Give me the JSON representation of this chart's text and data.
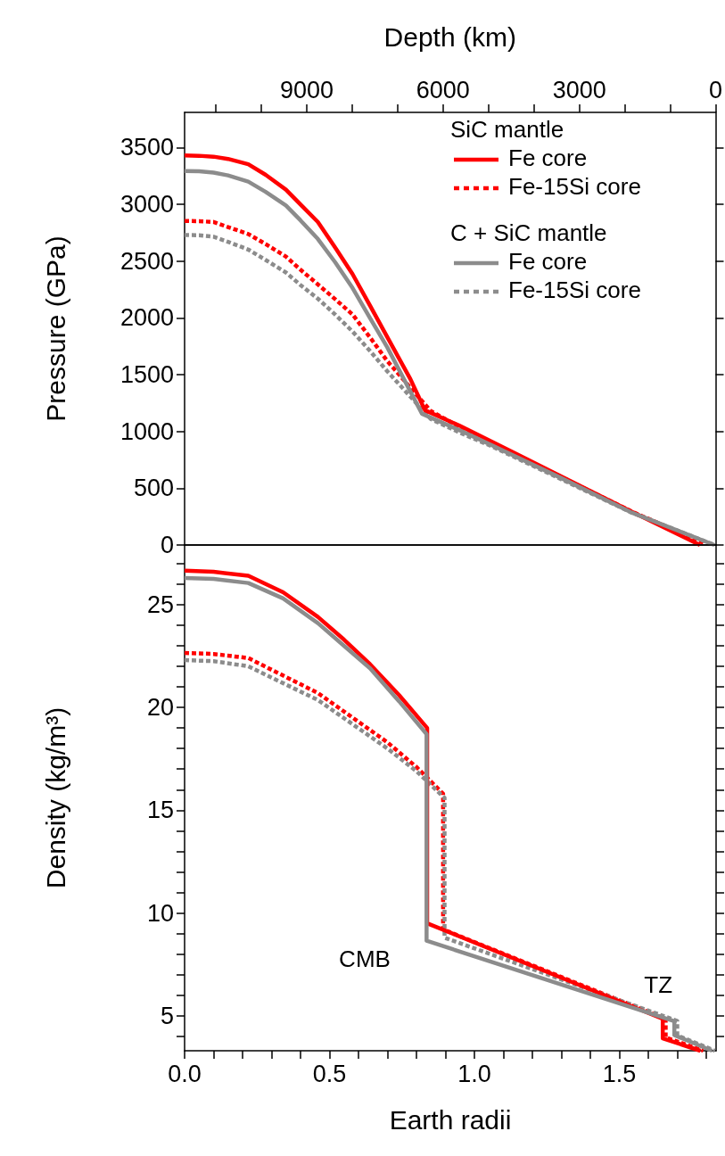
{
  "chart_data": [
    {
      "type": "line",
      "ylabel": "Pressure (GPa)",
      "x2label": "Depth (km)",
      "xlim": [
        0,
        1.834
      ],
      "x2lim": [
        11690,
        0
      ],
      "x2ticks": [
        {
          "value": 11000,
          "label": null
        },
        {
          "value": 10000,
          "label": null
        },
        9000,
        {
          "value": 8000,
          "label": null
        },
        {
          "value": 7000,
          "label": null
        },
        6000,
        {
          "value": 5000,
          "label": null
        },
        {
          "value": 4000,
          "label": null
        },
        3000,
        {
          "value": 2000,
          "label": null
        },
        {
          "value": 1000,
          "label": null
        },
        0
      ],
      "ylim": [
        0,
        3810
      ],
      "yticks": [
        0,
        500,
        1000,
        1500,
        2000,
        2500,
        3000,
        3500
      ],
      "tick_labels": "y",
      "grid": false,
      "legend": "top right",
      "legend_title": [
        "SiC mantle",
        "C + SiC mantle"
      ],
      "series": [
        {
          "name": "Fe core",
          "color": "#ff0000",
          "line_style": "solid",
          "x": [
            0,
            0.05,
            0.1,
            0.15,
            0.22,
            0.28,
            0.35,
            0.4,
            0.46,
            0.52,
            0.58,
            0.64,
            0.7,
            0.78,
            0.83,
            0.95,
            1.06,
            1.3,
            1.54,
            1.78
          ],
          "values": [
            3430,
            3428,
            3420,
            3400,
            3353,
            3260,
            3130,
            3000,
            2846,
            2620,
            2386,
            2110,
            1832,
            1460,
            1187,
            1050,
            912,
            605,
            299,
            0
          ]
        },
        {
          "name": "Fe-15Si core",
          "color": "#ff0000",
          "line_style": "dashed",
          "x": [
            0,
            0.05,
            0.1,
            0.15,
            0.22,
            0.28,
            0.35,
            0.4,
            0.46,
            0.52,
            0.58,
            0.64,
            0.7,
            0.85,
            0.95,
            1.06,
            1.3,
            1.54,
            1.8
          ],
          "values": [
            2854,
            2852,
            2845,
            2800,
            2739,
            2650,
            2540,
            2425,
            2296,
            2165,
            2030,
            1830,
            1620,
            1180,
            1040,
            900,
            600,
            300,
            10
          ]
        },
        {
          "name": "Fe core",
          "color": "#8c8c8c",
          "line_style": "solid",
          "x": [
            0,
            0.05,
            0.1,
            0.15,
            0.22,
            0.28,
            0.35,
            0.4,
            0.46,
            0.52,
            0.58,
            0.64,
            0.7,
            0.82,
            0.95,
            1.06,
            1.3,
            1.54,
            1.83
          ],
          "values": [
            3294,
            3292,
            3280,
            3255,
            3200,
            3110,
            2990,
            2860,
            2696,
            2490,
            2264,
            2000,
            1741,
            1156,
            1010,
            880,
            590,
            290,
            0
          ]
        },
        {
          "name": "Fe-15Si core",
          "color": "#8c8c8c",
          "line_style": "dashed",
          "x": [
            0,
            0.05,
            0.1,
            0.15,
            0.22,
            0.28,
            0.35,
            0.4,
            0.46,
            0.52,
            0.58,
            0.64,
            0.7,
            0.85,
            0.95,
            1.06,
            1.3,
            1.54,
            1.83
          ],
          "values": [
            2730,
            2728,
            2715,
            2670,
            2602,
            2510,
            2400,
            2290,
            2170,
            2030,
            1880,
            1710,
            1530,
            1110,
            990,
            870,
            580,
            290,
            0
          ]
        }
      ]
    },
    {
      "type": "line",
      "xlabel": "Earth radii",
      "ylabel": "Density (kg/m³)",
      "xlim": [
        0,
        1.834
      ],
      "xticks": [
        {
          "value": 0,
          "label": "0.0"
        },
        {
          "value": 0.1,
          "label": null
        },
        {
          "value": 0.2,
          "label": null
        },
        {
          "value": 0.3,
          "label": null
        },
        {
          "value": 0.4,
          "label": null
        },
        {
          "value": 0.5,
          "label": "0.5"
        },
        {
          "value": 0.6,
          "label": null
        },
        {
          "value": 0.7,
          "label": null
        },
        {
          "value": 0.8,
          "label": null
        },
        {
          "value": 0.9,
          "label": null
        },
        {
          "value": 1,
          "label": "1.0"
        },
        {
          "value": 1.1,
          "label": null
        },
        {
          "value": 1.2,
          "label": null
        },
        {
          "value": 1.3,
          "label": null
        },
        {
          "value": 1.4,
          "label": null
        },
        {
          "value": 1.5,
          "label": "1.5"
        },
        {
          "value": 1.6,
          "label": null
        },
        {
          "value": 1.7,
          "label": null
        },
        {
          "value": 1.8,
          "label": null
        }
      ],
      "ylim": [
        3.3,
        27.9
      ],
      "yticks": [
        {
          "value": 4,
          "label": null
        },
        5,
        {
          "value": 6,
          "label": null
        },
        {
          "value": 7,
          "label": null
        },
        {
          "value": 8,
          "label": null
        },
        {
          "value": 9,
          "label": null
        },
        10,
        {
          "value": 11,
          "label": null
        },
        {
          "value": 12,
          "label": null
        },
        {
          "value": 13,
          "label": null
        },
        {
          "value": 14,
          "label": null
        },
        15,
        {
          "value": 16,
          "label": null
        },
        {
          "value": 17,
          "label": null
        },
        {
          "value": 18,
          "label": null
        },
        {
          "value": 19,
          "label": null
        },
        20,
        {
          "value": 21,
          "label": null
        },
        {
          "value": 22,
          "label": null
        },
        {
          "value": 23,
          "label": null
        },
        {
          "value": 24,
          "label": null
        },
        25,
        {
          "value": 26,
          "label": null
        },
        {
          "value": 27,
          "label": null
        }
      ],
      "grid": false,
      "annotations": [
        {
          "text": "CMB",
          "x": 0.837,
          "y": 9.5
        },
        {
          "text": "TZ",
          "x": 1.65,
          "y": 4.85
        }
      ],
      "series": [
        {
          "color": "#ff0000",
          "line_style": "solid",
          "x": [
            0,
            0.1,
            0.22,
            0.34,
            0.46,
            0.55,
            0.64,
            0.74,
            0.837,
            0.837,
            1.65,
            1.65,
            1.78
          ],
          "values": [
            26.65,
            26.6,
            26.4,
            25.6,
            24.4,
            23.3,
            22.1,
            20.6,
            19.0,
            9.5,
            4.85,
            3.9,
            3.3
          ]
        },
        {
          "color": "#ff0000",
          "line_style": "dashed",
          "x": [
            0,
            0.1,
            0.22,
            0.46,
            0.7,
            0.8,
            0.892,
            0.892,
            1.66,
            1.66,
            1.79
          ],
          "values": [
            22.65,
            22.6,
            22.4,
            20.7,
            18.3,
            17.1,
            15.8,
            9.2,
            4.85,
            3.95,
            3.3
          ]
        },
        {
          "color": "#8c8c8c",
          "line_style": "solid",
          "x": [
            0,
            0.1,
            0.22,
            0.34,
            0.46,
            0.55,
            0.64,
            0.74,
            0.835,
            0.835,
            1.69,
            1.69,
            1.82
          ],
          "values": [
            26.3,
            26.25,
            26.05,
            25.3,
            24.1,
            23.0,
            21.9,
            20.3,
            18.7,
            8.65,
            4.74,
            4.06,
            3.3
          ]
        },
        {
          "color": "#8c8c8c",
          "line_style": "dashed",
          "x": [
            0,
            0.1,
            0.22,
            0.46,
            0.7,
            0.8,
            0.897,
            0.897,
            1.7,
            1.7,
            1.83
          ],
          "values": [
            22.3,
            22.25,
            22.0,
            20.36,
            18.0,
            16.9,
            15.6,
            8.8,
            4.75,
            4.05,
            3.3
          ]
        }
      ]
    }
  ]
}
